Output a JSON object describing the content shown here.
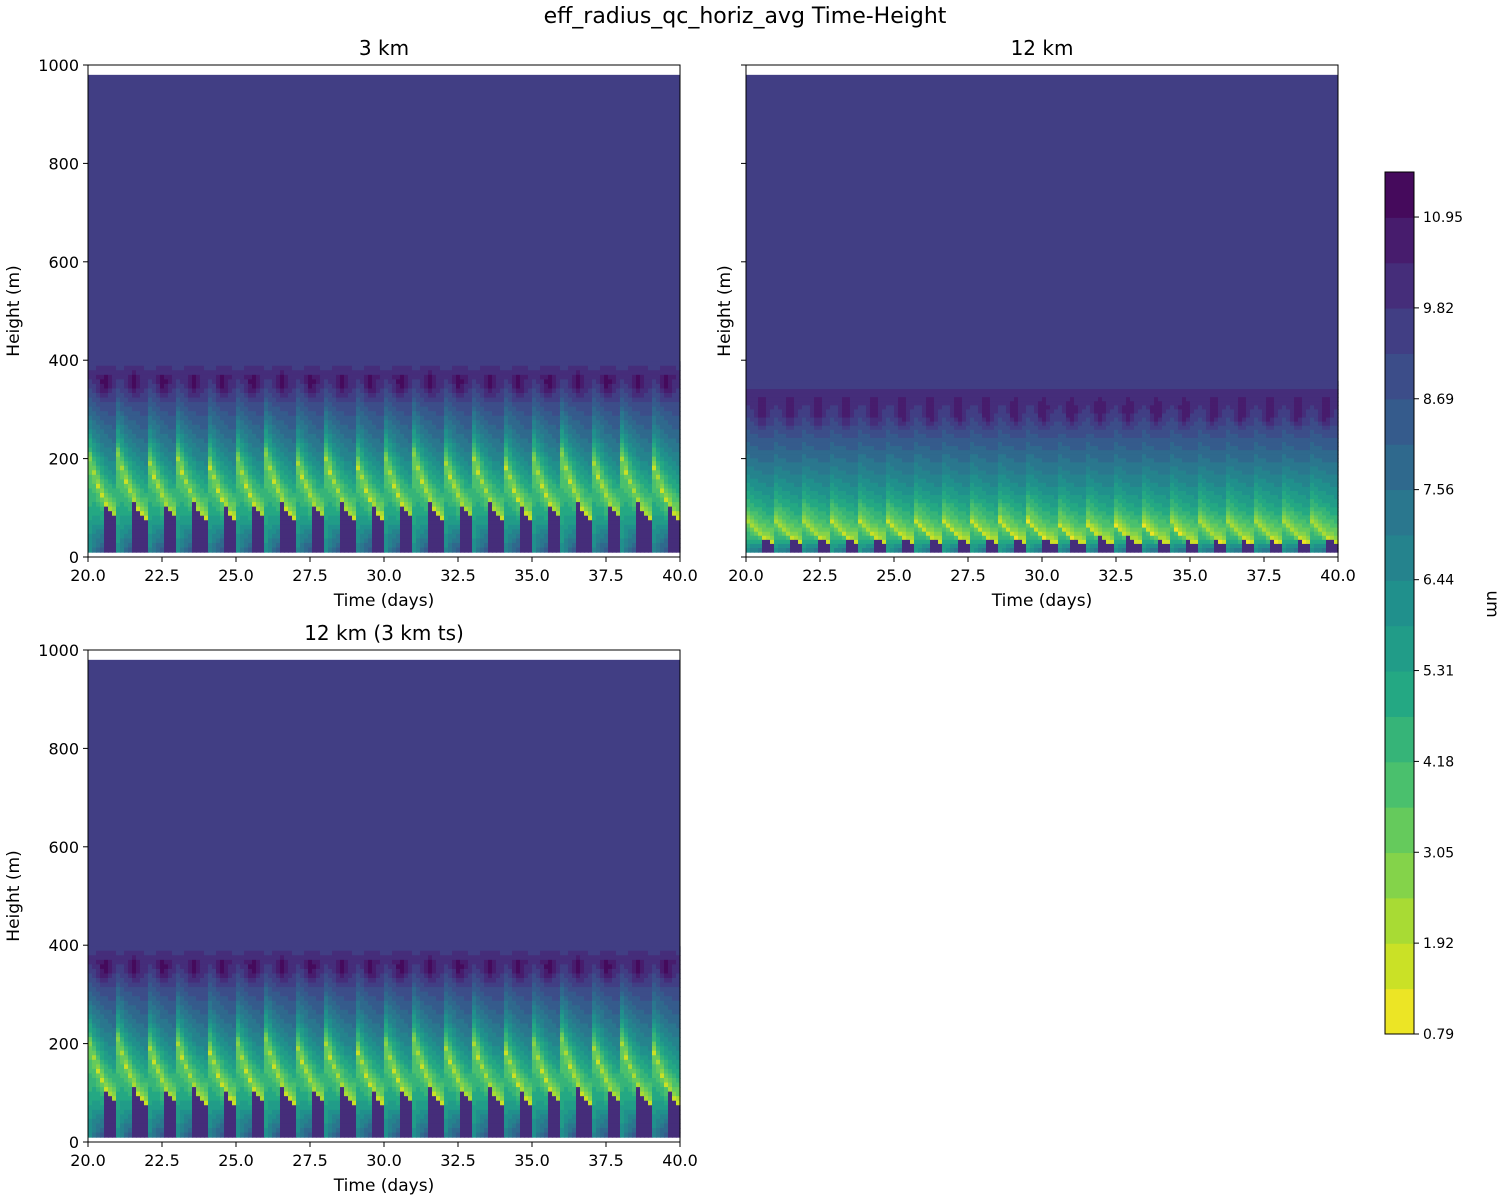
{
  "chart_data": {
    "type": "heatmap",
    "suptitle": "eff_radius_qc_horiz_avg Time-Height",
    "panels": [
      {
        "id": "p3",
        "title": "3 km",
        "xlabel": "Time (days)",
        "ylabel": "Height (m)",
        "xlim": [
          20,
          40
        ],
        "ylim": [
          0,
          1000
        ],
        "xticks": [
          "20.0",
          "22.5",
          "25.0",
          "27.5",
          "30.0",
          "32.5",
          "35.0",
          "37.5",
          "40.0"
        ],
        "yticks": [
          "0",
          "200",
          "400",
          "600",
          "800",
          "1000"
        ],
        "show_ytick_labels": true,
        "cycle_count": 20,
        "cloud_top_m": 390,
        "core_height_m": 350,
        "min_radius_height_m": 170,
        "data_top_m": 980,
        "data_bottom_m": 10,
        "background_value_um": 9.6
      },
      {
        "id": "p12",
        "title": "12 km",
        "xlabel": "Time (days)",
        "ylabel": "Height (m)",
        "xlim": [
          20,
          40
        ],
        "ylim": [
          0,
          1000
        ],
        "xticks": [
          "20.0",
          "22.5",
          "25.0",
          "27.5",
          "30.0",
          "32.5",
          "35.0",
          "37.5",
          "40.0"
        ],
        "yticks": [
          "0",
          "200",
          "400",
          "600",
          "800",
          "1000"
        ],
        "show_ytick_labels": false,
        "cycle_count": 21,
        "cloud_top_m": 350,
        "core_height_m": 290,
        "min_radius_height_m": 60,
        "data_top_m": 980,
        "data_bottom_m": 10,
        "background_value_um": 9.6
      },
      {
        "id": "p12ts",
        "title": "12 km (3 km ts)",
        "xlabel": "Time (days)",
        "ylabel": "Height (m)",
        "xlim": [
          20,
          40
        ],
        "ylim": [
          0,
          1000
        ],
        "xticks": [
          "20.0",
          "22.5",
          "25.0",
          "27.5",
          "30.0",
          "32.5",
          "35.0",
          "37.5",
          "40.0"
        ],
        "yticks": [
          "0",
          "200",
          "400",
          "600",
          "800",
          "1000"
        ],
        "show_ytick_labels": true,
        "cycle_count": 20,
        "cloud_top_m": 390,
        "core_height_m": 350,
        "min_radius_height_m": 170,
        "data_top_m": 980,
        "data_bottom_m": 10,
        "background_value_um": 9.6
      }
    ],
    "colorbar": {
      "label": "um",
      "colormap": "viridis",
      "range": [
        0.79,
        11.51
      ],
      "levels": 19,
      "tick_values": [
        0.79,
        1.92,
        3.05,
        4.18,
        5.31,
        6.44,
        7.56,
        8.69,
        9.82,
        10.95
      ],
      "tick_labels": [
        "0.79",
        "1.92",
        "3.05",
        "4.18",
        "5.31",
        "6.44",
        "7.56",
        "8.69",
        "9.82",
        "10.95"
      ]
    }
  }
}
